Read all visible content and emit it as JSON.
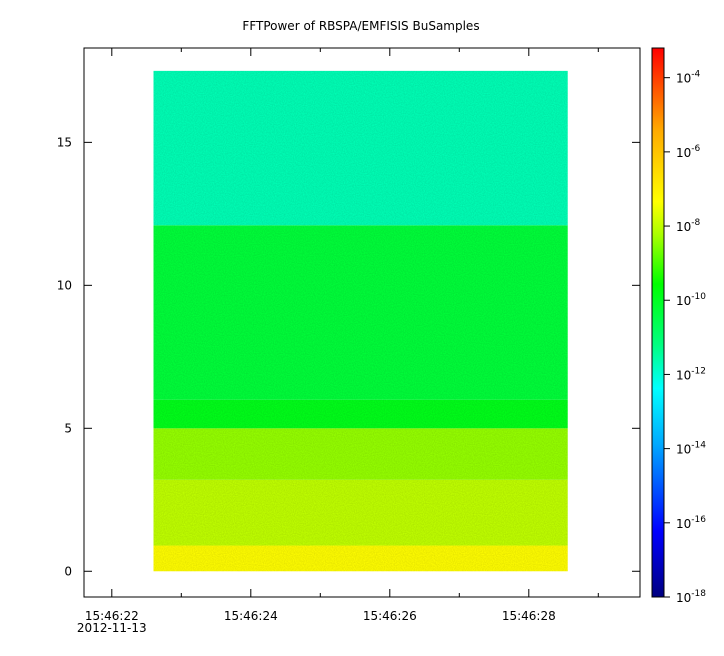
{
  "chart_data": {
    "type": "heatmap",
    "title": "FFTPower of RBSPA/EMFISIS  BuSamples",
    "xlabel": "",
    "ylabel": "",
    "x_ticks": [
      {
        "time": "15:46:22",
        "date": "2012-11-13",
        "t": 22
      },
      {
        "time": "15:46:24",
        "t": 24
      },
      {
        "time": "15:46:26",
        "t": 26
      },
      {
        "time": "15:46:28",
        "t": 28
      }
    ],
    "x_minor_ticks": [
      23,
      25,
      27,
      29
    ],
    "xlim": [
      21.6,
      29.6
    ],
    "y_ticks": [
      0,
      5,
      10,
      15
    ],
    "ylim": [
      -0.9,
      18.3
    ],
    "data_extent": {
      "t_start": 22.6,
      "t_end": 28.56,
      "y_min": 0.0,
      "y_max": 17.5
    },
    "bands": [
      {
        "y_from": 0.0,
        "y_to": 0.9,
        "log_power": -7.3
      },
      {
        "y_from": 0.9,
        "y_to": 3.2,
        "log_power": -8.0
      },
      {
        "y_from": 3.2,
        "y_to": 5.0,
        "log_power": -8.4
      },
      {
        "y_from": 5.0,
        "y_to": 6.0,
        "log_power": -9.9
      },
      {
        "y_from": 6.0,
        "y_to": 12.1,
        "log_power": -10.3
      },
      {
        "y_from": 12.1,
        "y_to": 17.5,
        "log_power": -11.7
      }
    ],
    "colorbar": {
      "scale": "log",
      "range_exp": [
        -18,
        -3.2
      ],
      "labels": [
        {
          "base": "10",
          "exp": "-4",
          "value": -4
        },
        {
          "base": "10",
          "exp": "-6",
          "value": -6
        },
        {
          "base": "10",
          "exp": "-8",
          "value": -8
        },
        {
          "base": "10",
          "exp": "-10",
          "value": -10
        },
        {
          "base": "10",
          "exp": "-12",
          "value": -12
        },
        {
          "base": "10",
          "exp": "-14",
          "value": -14
        },
        {
          "base": "10",
          "exp": "-16",
          "value": -16
        },
        {
          "base": "10",
          "exp": "-18",
          "value": -18
        }
      ],
      "colormap": [
        "#000080",
        "#0000ff",
        "#00aaff",
        "#00ffff",
        "#00ff80",
        "#00ff00",
        "#aaff00",
        "#ffff00",
        "#ffaa00",
        "#ff0000"
      ]
    }
  }
}
